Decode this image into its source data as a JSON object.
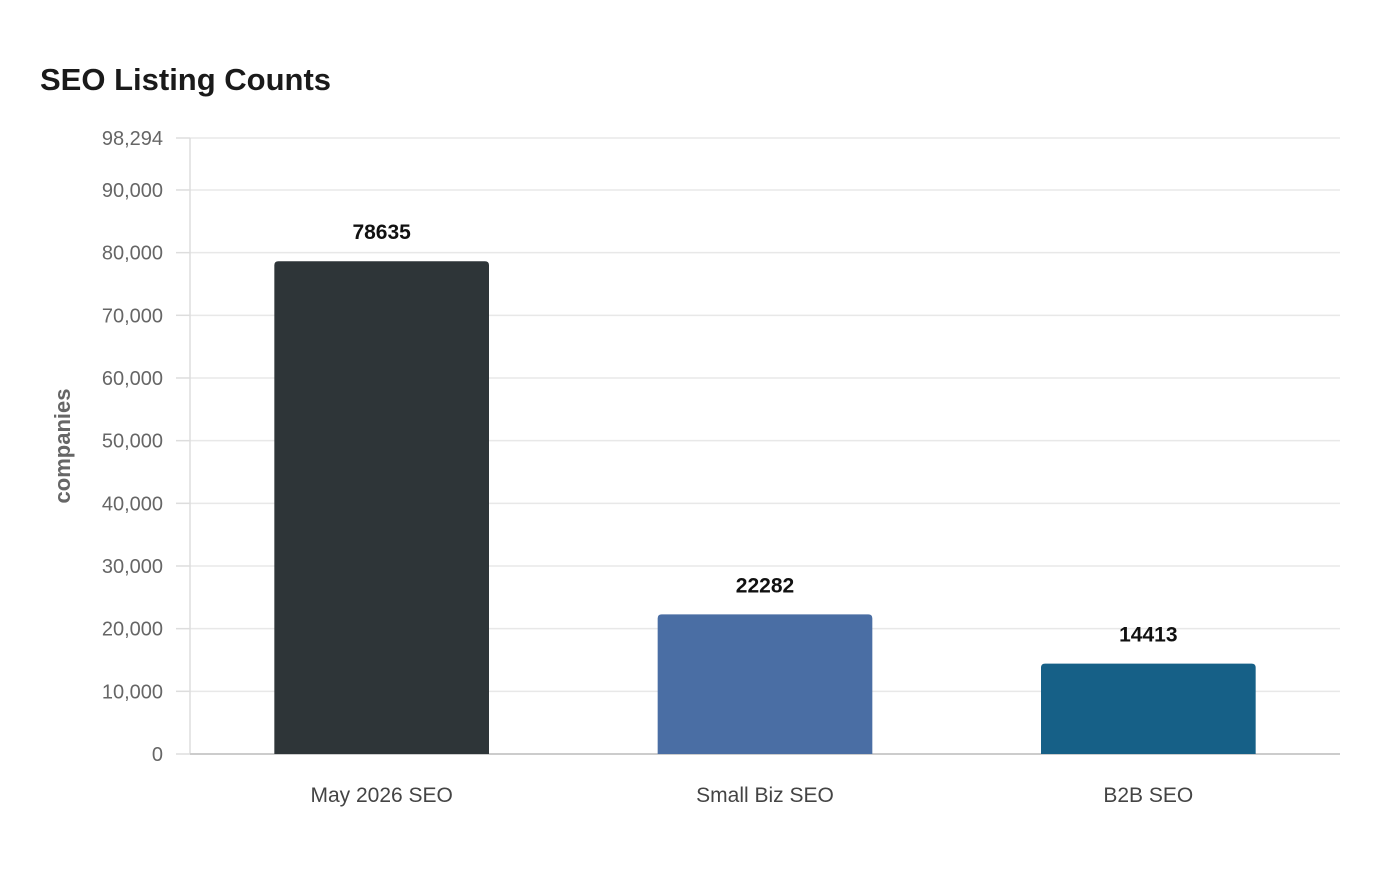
{
  "chart_data": {
    "type": "bar",
    "title": "SEO Listing Counts",
    "xlabel": "",
    "ylabel": "companies",
    "categories": [
      "May 2026 SEO",
      "Small Biz SEO",
      "B2B SEO"
    ],
    "values": [
      78635,
      22282,
      14413
    ],
    "data_labels": [
      "78635",
      "22282",
      "14413"
    ],
    "colors": [
      "#2e3538",
      "#4a6ea4",
      "#166087"
    ],
    "ylim": [
      0,
      98294
    ],
    "yticks": [
      0,
      10000,
      20000,
      30000,
      40000,
      50000,
      60000,
      70000,
      80000,
      90000,
      98294
    ],
    "ytick_labels": [
      "0",
      "10,000",
      "20,000",
      "30,000",
      "40,000",
      "50,000",
      "60,000",
      "70,000",
      "80,000",
      "90,000",
      "98,294"
    ],
    "grid": true,
    "legend": "none"
  }
}
